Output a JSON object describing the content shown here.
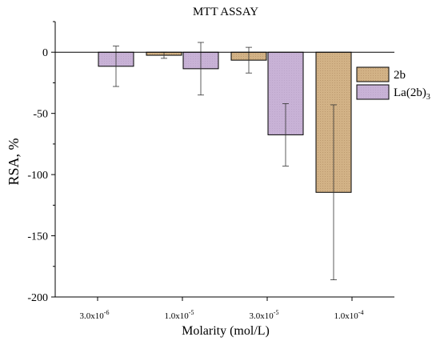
{
  "chart_data": {
    "type": "bar",
    "title": "MTT ASSAY",
    "xlabel": "Molarity (mol/L)",
    "ylabel": "RSA, %",
    "ylim": [
      -200,
      25
    ],
    "yticks": [
      0,
      -50,
      -100,
      -150,
      -200
    ],
    "categories": [
      {
        "base": "3.0x10",
        "exp": "-6"
      },
      {
        "base": "1.0x10",
        "exp": "-5"
      },
      {
        "base": "3.0x10",
        "exp": "-5"
      },
      {
        "base": "1.0x10",
        "exp": "-4"
      }
    ],
    "series": [
      {
        "name": "2b",
        "name_sub": "",
        "color": "#d2b286",
        "values": [
          null,
          -2.5,
          -6.5,
          -114.5
        ],
        "errors": [
          null,
          2.5,
          10.5,
          71.5
        ]
      },
      {
        "name": "La(2b)",
        "name_sub": "3",
        "color": "#c8b2d6",
        "values": [
          -11.5,
          -13.5,
          -67.5,
          null
        ],
        "errors": [
          16.5,
          21.5,
          25.5,
          null
        ]
      }
    ],
    "grid": false,
    "legend_position": "right"
  }
}
